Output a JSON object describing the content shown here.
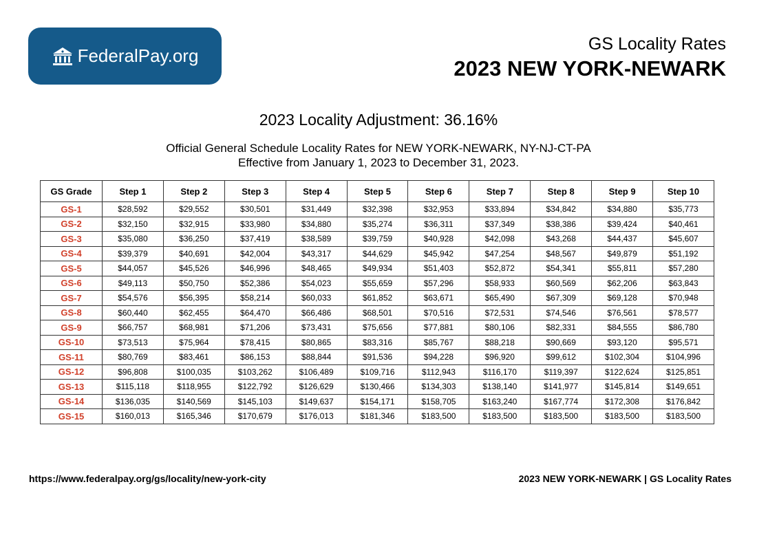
{
  "logo": {
    "icon": "courthouse-icon",
    "text": "FederalPay.org",
    "bg_color": "#155a8a"
  },
  "header": {
    "subtitle": "GS Locality Rates",
    "title": "2023 NEW YORK-NEWARK"
  },
  "adjustment": "2023 Locality Adjustment: 36.16%",
  "description": {
    "line1": "Official General Schedule Locality Rates for NEW YORK-NEWARK, NY-NJ-CT-PA",
    "line2": "Effective from January 1, 2023 to December 31, 2023."
  },
  "table": {
    "grade_color": "#d1402a",
    "headers": [
      "GS Grade",
      "Step 1",
      "Step 2",
      "Step 3",
      "Step 4",
      "Step 5",
      "Step 6",
      "Step 7",
      "Step 8",
      "Step 9",
      "Step 10"
    ],
    "rows": [
      [
        "GS-1",
        "$28,592",
        "$29,552",
        "$30,501",
        "$31,449",
        "$32,398",
        "$32,953",
        "$33,894",
        "$34,842",
        "$34,880",
        "$35,773"
      ],
      [
        "GS-2",
        "$32,150",
        "$32,915",
        "$33,980",
        "$34,880",
        "$35,274",
        "$36,311",
        "$37,349",
        "$38,386",
        "$39,424",
        "$40,461"
      ],
      [
        "GS-3",
        "$35,080",
        "$36,250",
        "$37,419",
        "$38,589",
        "$39,759",
        "$40,928",
        "$42,098",
        "$43,268",
        "$44,437",
        "$45,607"
      ],
      [
        "GS-4",
        "$39,379",
        "$40,691",
        "$42,004",
        "$43,317",
        "$44,629",
        "$45,942",
        "$47,254",
        "$48,567",
        "$49,879",
        "$51,192"
      ],
      [
        "GS-5",
        "$44,057",
        "$45,526",
        "$46,996",
        "$48,465",
        "$49,934",
        "$51,403",
        "$52,872",
        "$54,341",
        "$55,811",
        "$57,280"
      ],
      [
        "GS-6",
        "$49,113",
        "$50,750",
        "$52,386",
        "$54,023",
        "$55,659",
        "$57,296",
        "$58,933",
        "$60,569",
        "$62,206",
        "$63,843"
      ],
      [
        "GS-7",
        "$54,576",
        "$56,395",
        "$58,214",
        "$60,033",
        "$61,852",
        "$63,671",
        "$65,490",
        "$67,309",
        "$69,128",
        "$70,948"
      ],
      [
        "GS-8",
        "$60,440",
        "$62,455",
        "$64,470",
        "$66,486",
        "$68,501",
        "$70,516",
        "$72,531",
        "$74,546",
        "$76,561",
        "$78,577"
      ],
      [
        "GS-9",
        "$66,757",
        "$68,981",
        "$71,206",
        "$73,431",
        "$75,656",
        "$77,881",
        "$80,106",
        "$82,331",
        "$84,555",
        "$86,780"
      ],
      [
        "GS-10",
        "$73,513",
        "$75,964",
        "$78,415",
        "$80,865",
        "$83,316",
        "$85,767",
        "$88,218",
        "$90,669",
        "$93,120",
        "$95,571"
      ],
      [
        "GS-11",
        "$80,769",
        "$83,461",
        "$86,153",
        "$88,844",
        "$91,536",
        "$94,228",
        "$96,920",
        "$99,612",
        "$102,304",
        "$104,996"
      ],
      [
        "GS-12",
        "$96,808",
        "$100,035",
        "$103,262",
        "$106,489",
        "$109,716",
        "$112,943",
        "$116,170",
        "$119,397",
        "$122,624",
        "$125,851"
      ],
      [
        "GS-13",
        "$115,118",
        "$118,955",
        "$122,792",
        "$126,629",
        "$130,466",
        "$134,303",
        "$138,140",
        "$141,977",
        "$145,814",
        "$149,651"
      ],
      [
        "GS-14",
        "$136,035",
        "$140,569",
        "$145,103",
        "$149,637",
        "$154,171",
        "$158,705",
        "$163,240",
        "$167,774",
        "$172,308",
        "$176,842"
      ],
      [
        "GS-15",
        "$160,013",
        "$165,346",
        "$170,679",
        "$176,013",
        "$181,346",
        "$183,500",
        "$183,500",
        "$183,500",
        "$183,500",
        "$183,500"
      ]
    ]
  },
  "footer": {
    "url": "https://www.federalpay.org/gs/locality/new-york-city",
    "label": "2023 NEW YORK-NEWARK | GS Locality Rates"
  }
}
